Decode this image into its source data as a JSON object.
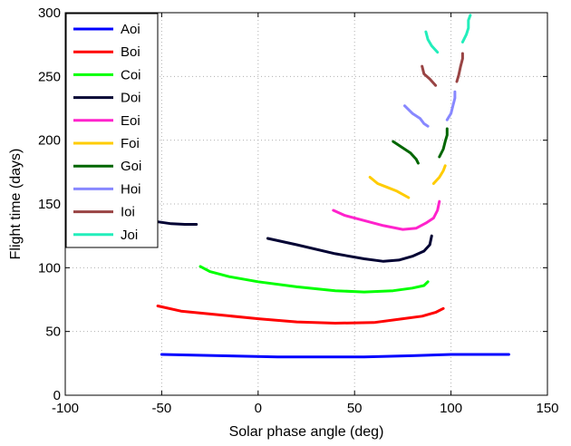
{
  "chart_data": {
    "type": "line",
    "xlabel": "Solar phase angle (deg)",
    "ylabel": "Flight time (days)",
    "xlim": [
      -100,
      150
    ],
    "ylim": [
      0,
      300
    ],
    "xticks": [
      -100,
      -50,
      0,
      50,
      100,
      150
    ],
    "yticks": [
      0,
      50,
      100,
      150,
      200,
      250,
      300
    ],
    "grid": true,
    "legend_position": "top-left",
    "series": [
      {
        "name": "Aoi",
        "color": "#0000ff",
        "segments": [
          [
            [
              -50,
              32
            ],
            [
              -20,
              31
            ],
            [
              10,
              30
            ],
            [
              30,
              30
            ],
            [
              55,
              30
            ],
            [
              80,
              31
            ],
            [
              100,
              32
            ],
            [
              130,
              32
            ]
          ]
        ]
      },
      {
        "name": "Boi",
        "color": "#ff0000",
        "segments": [
          [
            [
              -52,
              70
            ],
            [
              -40,
              66
            ],
            [
              -20,
              63
            ],
            [
              0,
              60
            ],
            [
              20,
              57.5
            ],
            [
              40,
              56.5
            ],
            [
              60,
              57
            ],
            [
              75,
              60
            ],
            [
              85,
              62
            ],
            [
              92,
              65
            ],
            [
              96,
              68
            ]
          ]
        ]
      },
      {
        "name": "Coi",
        "color": "#00ff00",
        "segments": [
          [
            [
              -30,
              101
            ],
            [
              -25,
              97
            ],
            [
              -15,
              93
            ],
            [
              0,
              89
            ],
            [
              20,
              85
            ],
            [
              40,
              82
            ],
            [
              55,
              81
            ],
            [
              70,
              82
            ],
            [
              80,
              84
            ],
            [
              86,
              86
            ],
            [
              88,
              89
            ]
          ]
        ]
      },
      {
        "name": "Doi",
        "color": "#000033",
        "segments": [
          [
            [
              -52,
              136
            ],
            [
              -45,
              134.5
            ],
            [
              -38,
              134
            ],
            [
              -32,
              134
            ]
          ],
          [
            [
              5,
              123
            ],
            [
              20,
              118
            ],
            [
              40,
              111
            ],
            [
              55,
              107
            ],
            [
              65,
              105
            ],
            [
              73,
              106
            ],
            [
              80,
              109
            ],
            [
              86,
              113
            ],
            [
              89,
              118
            ],
            [
              90,
              125
            ]
          ]
        ]
      },
      {
        "name": "Eoi",
        "color": "#ff22cc",
        "segments": [
          [
            [
              39,
              145
            ],
            [
              45,
              141
            ],
            [
              55,
              137
            ],
            [
              65,
              133
            ],
            [
              75,
              130
            ],
            [
              82,
              131
            ],
            [
              87,
              135
            ],
            [
              91,
              139
            ],
            [
              93,
              145
            ],
            [
              94,
              152
            ]
          ]
        ]
      },
      {
        "name": "Foi",
        "color": "#ffcc00",
        "segments": [
          [
            [
              58,
              171
            ],
            [
              62,
              166
            ],
            [
              67,
              163
            ],
            [
              72,
              160
            ],
            [
              78,
              155
            ]
          ],
          [
            [
              91,
              166
            ],
            [
              94,
              171
            ],
            [
              96,
              176
            ],
            [
              97,
              180
            ]
          ]
        ]
      },
      {
        "name": "Goi",
        "color": "#006600",
        "segments": [
          [
            [
              70,
              199
            ],
            [
              75,
              194
            ],
            [
              79,
              190
            ],
            [
              82,
              185
            ],
            [
              83,
              182
            ]
          ],
          [
            [
              94,
              187
            ],
            [
              96,
              193
            ],
            [
              97,
              199
            ],
            [
              98,
              204
            ],
            [
              98,
              209
            ]
          ]
        ]
      },
      {
        "name": "Hoi",
        "color": "#8888ff",
        "segments": [
          [
            [
              76,
              227
            ],
            [
              80,
              221
            ],
            [
              84,
              217
            ],
            [
              86,
              213
            ],
            [
              88,
              211
            ]
          ],
          [
            [
              98,
              216
            ],
            [
              100,
              221
            ],
            [
              101,
              227
            ],
            [
              102,
              233
            ],
            [
              102,
              238
            ]
          ]
        ]
      },
      {
        "name": "Ioi",
        "color": "#994444",
        "segments": [
          [
            [
              85,
              258
            ],
            [
              86,
              252
            ],
            [
              89,
              248
            ],
            [
              92,
              243
            ]
          ],
          [
            [
              103,
              246
            ],
            [
              104,
              251
            ],
            [
              105,
              258
            ],
            [
              106,
              264
            ],
            [
              106,
              268
            ]
          ]
        ]
      },
      {
        "name": "Joi",
        "color": "#22eebb",
        "segments": [
          [
            [
              87,
              285
            ],
            [
              88,
              279
            ],
            [
              90,
              274
            ],
            [
              93,
              269
            ]
          ],
          [
            [
              106,
              277
            ],
            [
              108,
              283
            ],
            [
              109,
              288
            ],
            [
              109,
              294
            ],
            [
              110,
              298
            ]
          ]
        ]
      }
    ]
  }
}
